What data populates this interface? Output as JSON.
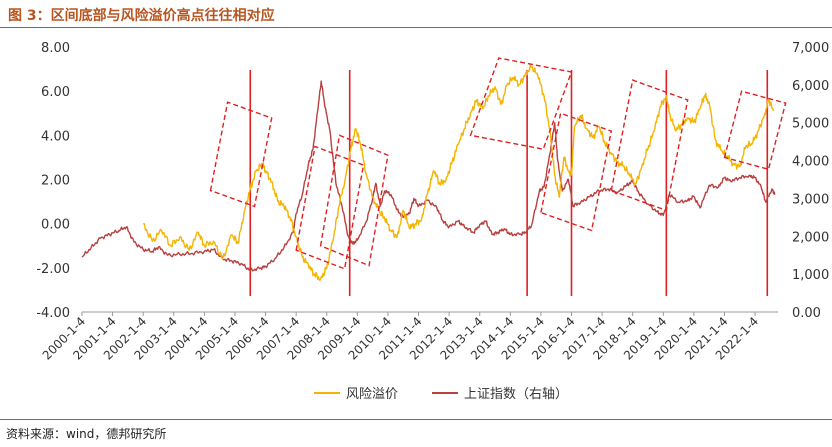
{
  "header": {
    "title": "图 3：区间底部与风险溢价高点往往相对应"
  },
  "source": "资料来源：wind，德邦研究所",
  "colors": {
    "accent": "#b8551f",
    "premium": "#f5b400",
    "index": "#b84040",
    "marker": "#e02020"
  },
  "chart_data": {
    "type": "line",
    "x_ticks": [
      "2000-1-4",
      "2001-1-4",
      "2002-1-4",
      "2003-1-4",
      "2004-1-4",
      "2005-1-4",
      "2006-1-4",
      "2007-1-4",
      "2008-1-4",
      "2009-1-4",
      "2010-1-4",
      "2011-1-4",
      "2012-1-4",
      "2013-1-4",
      "2014-1-4",
      "2015-1-4",
      "2016-1-4",
      "2017-1-4",
      "2018-1-4",
      "2019-1-4",
      "2020-1-4",
      "2021-1-4",
      "2022-1-4"
    ],
    "y_left": {
      "ticks": [
        "8.00",
        "6.00",
        "4.00",
        "2.00",
        "0.00",
        "-2.00",
        "-4.00"
      ],
      "range": [
        -4,
        8
      ]
    },
    "y_right": {
      "ticks": [
        "7,000",
        "6,000",
        "5,000",
        "4,000",
        "3,000",
        "2,000",
        "1,000",
        "0.00"
      ],
      "range": [
        0,
        7000
      ]
    },
    "legend": [
      "风险溢价",
      "上证指数（右轴）"
    ],
    "series": [
      {
        "name": "风险溢价",
        "axis": "left",
        "points": [
          [
            2002.0,
            0.0
          ],
          [
            2002.3,
            -0.8
          ],
          [
            2002.6,
            -0.3
          ],
          [
            2002.9,
            -1.0
          ],
          [
            2003.2,
            -0.6
          ],
          [
            2003.5,
            -1.2
          ],
          [
            2003.8,
            -0.4
          ],
          [
            2004.0,
            -1.0
          ],
          [
            2004.3,
            -0.8
          ],
          [
            2004.6,
            -1.6
          ],
          [
            2004.9,
            -0.5
          ],
          [
            2005.1,
            -0.9
          ],
          [
            2005.3,
            0.5
          ],
          [
            2005.5,
            1.6
          ],
          [
            2005.7,
            2.4
          ],
          [
            2005.9,
            2.7
          ],
          [
            2006.0,
            2.4
          ],
          [
            2006.2,
            1.9
          ],
          [
            2006.4,
            1.0
          ],
          [
            2006.6,
            0.8
          ],
          [
            2006.8,
            0.3
          ],
          [
            2007.0,
            -0.6
          ],
          [
            2007.2,
            -1.5
          ],
          [
            2007.4,
            -1.9
          ],
          [
            2007.6,
            -2.3
          ],
          [
            2007.8,
            -2.5
          ],
          [
            2008.0,
            -2.0
          ],
          [
            2008.2,
            -0.8
          ],
          [
            2008.4,
            0.8
          ],
          [
            2008.6,
            2.0
          ],
          [
            2008.8,
            3.5
          ],
          [
            2008.95,
            4.3
          ],
          [
            2009.1,
            3.6
          ],
          [
            2009.3,
            2.2
          ],
          [
            2009.5,
            1.2
          ],
          [
            2009.7,
            0.6
          ],
          [
            2009.9,
            0.2
          ],
          [
            2010.1,
            -0.3
          ],
          [
            2010.3,
            -0.6
          ],
          [
            2010.5,
            0.6
          ],
          [
            2010.7,
            -0.2
          ],
          [
            2010.9,
            0.0
          ],
          [
            2011.1,
            0.2
          ],
          [
            2011.3,
            1.4
          ],
          [
            2011.5,
            2.4
          ],
          [
            2011.7,
            1.8
          ],
          [
            2011.9,
            2.0
          ],
          [
            2012.1,
            2.8
          ],
          [
            2012.3,
            3.6
          ],
          [
            2012.5,
            4.3
          ],
          [
            2012.7,
            5.0
          ],
          [
            2012.9,
            5.6
          ],
          [
            2013.1,
            5.2
          ],
          [
            2013.3,
            5.8
          ],
          [
            2013.5,
            6.2
          ],
          [
            2013.7,
            5.4
          ],
          [
            2013.9,
            6.3
          ],
          [
            2014.1,
            6.6
          ],
          [
            2014.3,
            6.3
          ],
          [
            2014.5,
            6.8
          ],
          [
            2014.7,
            7.1
          ],
          [
            2014.9,
            6.7
          ],
          [
            2015.1,
            5.8
          ],
          [
            2015.3,
            4.2
          ],
          [
            2015.45,
            2.2
          ],
          [
            2015.6,
            1.2
          ],
          [
            2015.75,
            3.0
          ],
          [
            2015.9,
            2.4
          ],
          [
            2016.0,
            2.2
          ],
          [
            2016.1,
            4.4
          ],
          [
            2016.3,
            4.9
          ],
          [
            2016.5,
            4.3
          ],
          [
            2016.7,
            3.9
          ],
          [
            2016.9,
            4.4
          ],
          [
            2017.1,
            3.6
          ],
          [
            2017.3,
            3.2
          ],
          [
            2017.5,
            2.8
          ],
          [
            2017.7,
            2.6
          ],
          [
            2017.9,
            2.2
          ],
          [
            2018.1,
            1.8
          ],
          [
            2018.3,
            2.6
          ],
          [
            2018.5,
            3.4
          ],
          [
            2018.7,
            4.2
          ],
          [
            2018.9,
            5.3
          ],
          [
            2019.1,
            5.8
          ],
          [
            2019.2,
            5.0
          ],
          [
            2019.4,
            4.2
          ],
          [
            2019.6,
            4.5
          ],
          [
            2019.8,
            4.8
          ],
          [
            2020.0,
            4.6
          ],
          [
            2020.2,
            5.2
          ],
          [
            2020.35,
            5.8
          ],
          [
            2020.5,
            5.5
          ],
          [
            2020.7,
            3.8
          ],
          [
            2020.9,
            3.3
          ],
          [
            2021.1,
            3.0
          ],
          [
            2021.3,
            2.7
          ],
          [
            2021.5,
            2.6
          ],
          [
            2021.7,
            3.5
          ],
          [
            2021.9,
            3.6
          ],
          [
            2022.1,
            4.2
          ],
          [
            2022.3,
            4.9
          ],
          [
            2022.45,
            5.6
          ],
          [
            2022.6,
            5.1
          ]
        ]
      },
      {
        "name": "上证指数（右轴）",
        "axis": "right",
        "points": [
          [
            2000.0,
            1450
          ],
          [
            2000.3,
            1700
          ],
          [
            2000.6,
            1950
          ],
          [
            2000.9,
            2050
          ],
          [
            2001.2,
            2150
          ],
          [
            2001.45,
            2250
          ],
          [
            2001.7,
            1850
          ],
          [
            2002.0,
            1650
          ],
          [
            2002.3,
            1600
          ],
          [
            2002.5,
            1720
          ],
          [
            2002.8,
            1500
          ],
          [
            2003.2,
            1520
          ],
          [
            2003.6,
            1550
          ],
          [
            2004.0,
            1600
          ],
          [
            2004.3,
            1650
          ],
          [
            2004.6,
            1400
          ],
          [
            2004.9,
            1350
          ],
          [
            2005.2,
            1280
          ],
          [
            2005.5,
            1100
          ],
          [
            2005.8,
            1150
          ],
          [
            2006.0,
            1200
          ],
          [
            2006.3,
            1400
          ],
          [
            2006.6,
            1700
          ],
          [
            2006.9,
            2100
          ],
          [
            2007.0,
            2600
          ],
          [
            2007.2,
            3100
          ],
          [
            2007.4,
            3900
          ],
          [
            2007.55,
            4300
          ],
          [
            2007.7,
            5300
          ],
          [
            2007.82,
            6100
          ],
          [
            2007.95,
            5400
          ],
          [
            2008.1,
            4800
          ],
          [
            2008.3,
            3400
          ],
          [
            2008.5,
            2800
          ],
          [
            2008.7,
            2000
          ],
          [
            2008.85,
            1800
          ],
          [
            2009.0,
            1900
          ],
          [
            2009.3,
            2400
          ],
          [
            2009.5,
            3000
          ],
          [
            2009.6,
            3400
          ],
          [
            2009.75,
            2800
          ],
          [
            2009.9,
            3200
          ],
          [
            2010.1,
            3100
          ],
          [
            2010.3,
            2700
          ],
          [
            2010.5,
            2500
          ],
          [
            2010.7,
            2600
          ],
          [
            2010.85,
            3000
          ],
          [
            2011.0,
            2800
          ],
          [
            2011.3,
            2950
          ],
          [
            2011.6,
            2750
          ],
          [
            2011.8,
            2400
          ],
          [
            2012.0,
            2250
          ],
          [
            2012.3,
            2400
          ],
          [
            2012.5,
            2250
          ],
          [
            2012.8,
            2100
          ],
          [
            2013.0,
            2300
          ],
          [
            2013.2,
            2400
          ],
          [
            2013.4,
            2050
          ],
          [
            2013.6,
            2100
          ],
          [
            2013.8,
            2200
          ],
          [
            2014.0,
            2050
          ],
          [
            2014.3,
            2050
          ],
          [
            2014.5,
            2100
          ],
          [
            2014.7,
            2300
          ],
          [
            2014.95,
            3200
          ],
          [
            2015.1,
            3300
          ],
          [
            2015.3,
            4200
          ],
          [
            2015.45,
            5000
          ],
          [
            2015.55,
            4000
          ],
          [
            2015.7,
            3200
          ],
          [
            2015.9,
            3500
          ],
          [
            2016.05,
            2800
          ],
          [
            2016.3,
            2900
          ],
          [
            2016.6,
            3050
          ],
          [
            2016.9,
            3200
          ],
          [
            2017.2,
            3250
          ],
          [
            2017.5,
            3150
          ],
          [
            2017.8,
            3350
          ],
          [
            2018.0,
            3450
          ],
          [
            2018.2,
            3150
          ],
          [
            2018.5,
            2850
          ],
          [
            2018.8,
            2650
          ],
          [
            2019.0,
            2550
          ],
          [
            2019.2,
            3100
          ],
          [
            2019.5,
            2900
          ],
          [
            2019.8,
            2950
          ],
          [
            2020.0,
            3050
          ],
          [
            2020.2,
            2750
          ],
          [
            2020.5,
            3350
          ],
          [
            2020.8,
            3300
          ],
          [
            2021.0,
            3550
          ],
          [
            2021.2,
            3450
          ],
          [
            2021.5,
            3550
          ],
          [
            2021.8,
            3600
          ],
          [
            2022.0,
            3550
          ],
          [
            2022.2,
            3300
          ],
          [
            2022.35,
            2900
          ],
          [
            2022.55,
            3250
          ],
          [
            2022.65,
            3100
          ]
        ]
      }
    ],
    "vertical_markers": [
      2005.5,
      2008.75,
      2014.55,
      2016.0,
      2019.1,
      2022.4
    ],
    "highlight_boxes": [
      {
        "x": [
          2004.2,
          2006.2
        ],
        "y": [
          1.5,
          5.5
        ]
      },
      {
        "x": [
          2007.0,
          2009.2
        ],
        "y": [
          -1.2,
          3.5
        ]
      },
      {
        "x": [
          2007.8,
          2010.0
        ],
        "y": [
          -1.0,
          4.0
        ]
      },
      {
        "x": [
          2012.7,
          2016.0
        ],
        "y": [
          4.0,
          7.5
        ]
      },
      {
        "x": [
          2015.0,
          2017.3
        ],
        "y": [
          0.5,
          5.0
        ]
      },
      {
        "x": [
          2017.3,
          2019.8
        ],
        "y": [
          1.5,
          6.5
        ]
      },
      {
        "x": [
          2021.0,
          2023.0
        ],
        "y": [
          3.0,
          6.0
        ]
      }
    ]
  }
}
